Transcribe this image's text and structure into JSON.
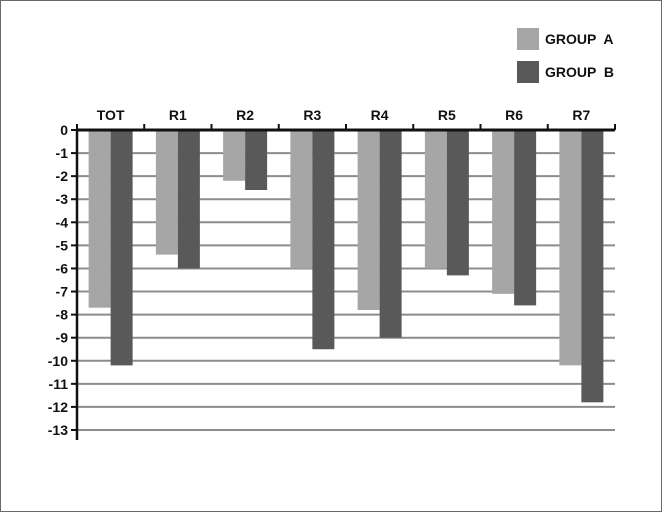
{
  "chart_data": {
    "type": "bar",
    "title": "",
    "xlabel": "",
    "ylabel": "",
    "categories": [
      "TOT",
      "R1",
      "R2",
      "R3",
      "R4",
      "R5",
      "R6",
      "R7"
    ],
    "series": [
      {
        "name": "GROUP  A",
        "color": "#a6a6a6",
        "values": [
          -7.7,
          -5.4,
          -2.2,
          -6.0,
          -7.8,
          -6.0,
          -7.1,
          -10.2
        ]
      },
      {
        "name": "GROUP  B",
        "color": "#595959",
        "values": [
          -10.2,
          -6.0,
          -2.6,
          -9.5,
          -9.0,
          -6.3,
          -7.6,
          -11.8
        ]
      }
    ],
    "ylim": [
      -13,
      0
    ],
    "yticks": [
      0,
      -1,
      -2,
      -3,
      -4,
      -5,
      -6,
      -7,
      -8,
      -9,
      -10,
      -11,
      -12,
      -13
    ],
    "ytick_labels": [
      "0",
      "-1",
      "-2",
      "-3",
      "-4",
      "-5",
      "-6",
      "-7",
      "-8",
      "-9",
      "-10",
      "-11",
      "-12",
      "-13"
    ],
    "grid": true,
    "legend_position": "top-right",
    "category_axis_position": "top"
  }
}
